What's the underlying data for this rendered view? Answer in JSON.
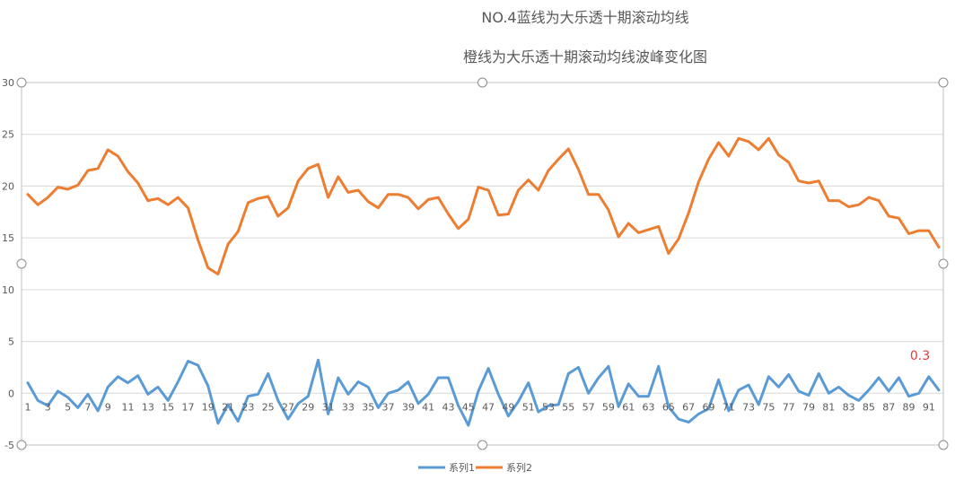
{
  "chart_data": {
    "type": "line",
    "title": "NO.4蓝线为大乐透十期滚动均线",
    "subtitle": "橙线为大乐透十期滚动均线波峰变化图",
    "ylim": [
      -5,
      30
    ],
    "yticks": [
      -5,
      0,
      5,
      10,
      15,
      20,
      25,
      30
    ],
    "x": [
      1,
      2,
      3,
      4,
      5,
      6,
      7,
      8,
      9,
      10,
      11,
      12,
      13,
      14,
      15,
      16,
      17,
      18,
      19,
      20,
      21,
      22,
      23,
      24,
      25,
      26,
      27,
      28,
      29,
      30,
      31,
      32,
      33,
      34,
      35,
      36,
      37,
      38,
      39,
      40,
      41,
      42,
      43,
      44,
      45,
      46,
      47,
      48,
      49,
      50,
      51,
      52,
      53,
      54,
      55,
      56,
      57,
      58,
      59,
      60,
      61,
      62,
      63,
      64,
      65,
      66,
      67,
      68,
      69,
      70,
      71,
      72,
      73,
      74,
      75,
      76,
      77,
      78,
      79,
      80,
      81,
      82,
      83,
      84,
      85,
      86,
      87,
      88,
      89,
      90,
      91,
      92
    ],
    "xtick_labels": [
      "1",
      "3",
      "5",
      "7",
      "9",
      "11",
      "13",
      "15",
      "17",
      "19",
      "21",
      "23",
      "25",
      "27",
      "29",
      "31",
      "33",
      "35",
      "37",
      "39",
      "41",
      "43",
      "45",
      "47",
      "49",
      "51",
      "53",
      "55",
      "57",
      "59",
      "61",
      "63",
      "65",
      "67",
      "69",
      "71",
      "73",
      "75",
      "77",
      "79",
      "81",
      "83",
      "85",
      "87",
      "89",
      "91"
    ],
    "series": [
      {
        "name": "系列1",
        "color": "#5b9bd5",
        "values": [
          1.0,
          -0.7,
          -1.2,
          0.2,
          -0.4,
          -1.4,
          -0.1,
          -1.7,
          0.6,
          1.6,
          1.0,
          1.7,
          -0.1,
          0.6,
          -0.7,
          1.1,
          3.1,
          2.7,
          0.7,
          -2.9,
          -1.1,
          -2.7,
          -0.3,
          -0.1,
          1.9,
          -0.7,
          -2.5,
          -1.0,
          -0.3,
          3.2,
          -2.0,
          1.5,
          -0.1,
          1.1,
          0.6,
          -1.4,
          0.0,
          0.3,
          1.1,
          -1.0,
          -0.1,
          1.5,
          1.5,
          -1.2,
          -3.1,
          0.2,
          2.4,
          -0.1,
          -2.2,
          -0.8,
          1.0,
          -1.8,
          -1.2,
          -1.1,
          1.9,
          2.5,
          0.0,
          1.5,
          2.6,
          -1.3,
          0.9,
          -0.3,
          -0.3,
          2.6,
          -1.3,
          -2.5,
          -2.8,
          -2.0,
          -1.5,
          1.3,
          -1.7,
          0.3,
          0.8,
          -1.1,
          1.6,
          0.6,
          1.8,
          0.2,
          -0.2,
          1.9,
          0.0,
          0.6,
          -0.2,
          -0.7,
          0.3,
          1.5,
          0.2,
          1.5,
          -0.3,
          0.0,
          1.6,
          0.3
        ]
      },
      {
        "name": "系列2",
        "color": "#ed7d31",
        "values": [
          19.2,
          18.2,
          18.9,
          19.9,
          19.7,
          20.1,
          21.5,
          21.7,
          23.5,
          22.9,
          21.4,
          20.3,
          18.6,
          18.8,
          18.2,
          18.9,
          17.9,
          14.8,
          12.1,
          11.5,
          14.4,
          15.6,
          18.4,
          18.8,
          19.0,
          17.1,
          17.9,
          20.5,
          21.7,
          22.1,
          18.9,
          20.9,
          19.4,
          19.6,
          18.5,
          17.9,
          19.2,
          19.2,
          18.9,
          17.8,
          18.7,
          18.9,
          17.3,
          15.9,
          16.8,
          19.9,
          19.6,
          17.2,
          17.3,
          19.6,
          20.6,
          19.6,
          21.5,
          22.6,
          23.6,
          21.6,
          19.2,
          19.2,
          17.7,
          15.1,
          16.4,
          15.5,
          15.8,
          16.1,
          13.5,
          14.9,
          17.4,
          20.4,
          22.6,
          24.2,
          22.9,
          24.6,
          24.3,
          23.5,
          24.6,
          23.0,
          22.3,
          20.5,
          20.3,
          20.5,
          18.6,
          18.6,
          18.0,
          18.2,
          18.9,
          18.6,
          17.1,
          16.9,
          15.4,
          15.7,
          15.7,
          14.1
        ]
      }
    ],
    "annotations": [
      {
        "text": "0.3",
        "color": "#e03c3c"
      }
    ],
    "legend": {
      "position": "bottom"
    },
    "grid": true
  }
}
